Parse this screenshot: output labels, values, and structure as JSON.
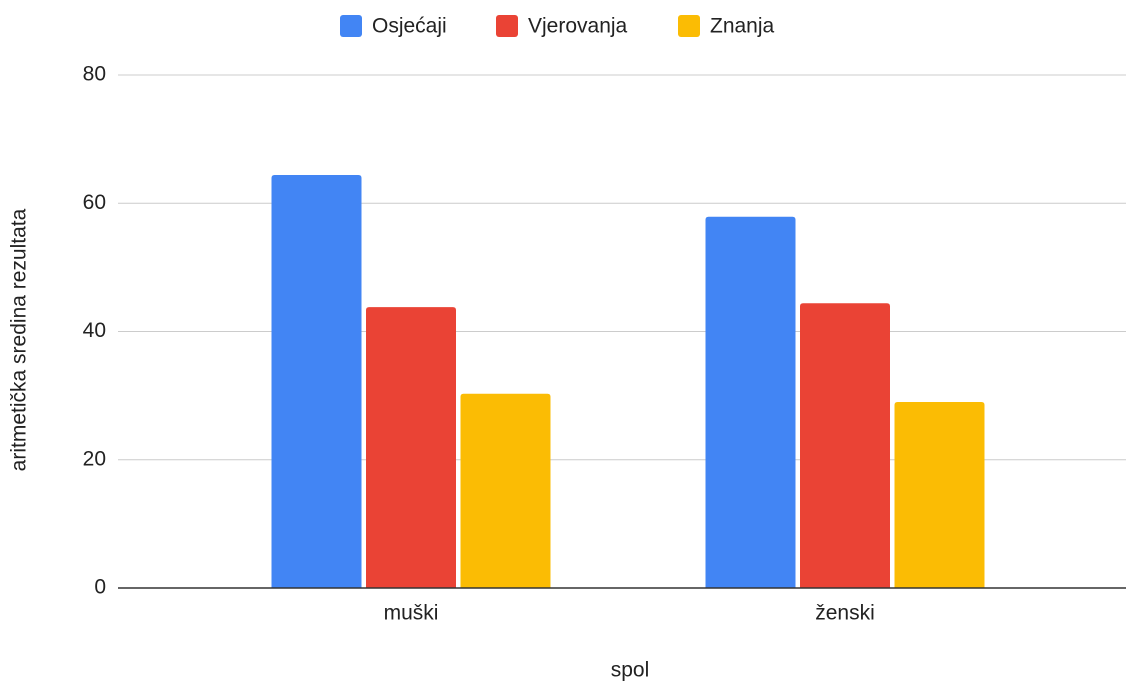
{
  "chart_data": {
    "type": "bar",
    "xlabel": "spol",
    "ylabel": "aritmetička sredina rezultata",
    "categories": [
      "muški",
      "ženski"
    ],
    "series": [
      {
        "name": "Osjećaji",
        "color": "#4285f4",
        "values": [
          64.4,
          57.9
        ]
      },
      {
        "name": "Vjerovanja",
        "color": "#ea4335",
        "values": [
          43.8,
          44.4
        ]
      },
      {
        "name": "Znanja",
        "color": "#fbbc04",
        "values": [
          30.3,
          29.0
        ]
      }
    ],
    "ylim": [
      0,
      80
    ],
    "yticks": [
      0,
      20,
      40,
      60,
      80
    ],
    "grid": true,
    "legend": "top"
  }
}
